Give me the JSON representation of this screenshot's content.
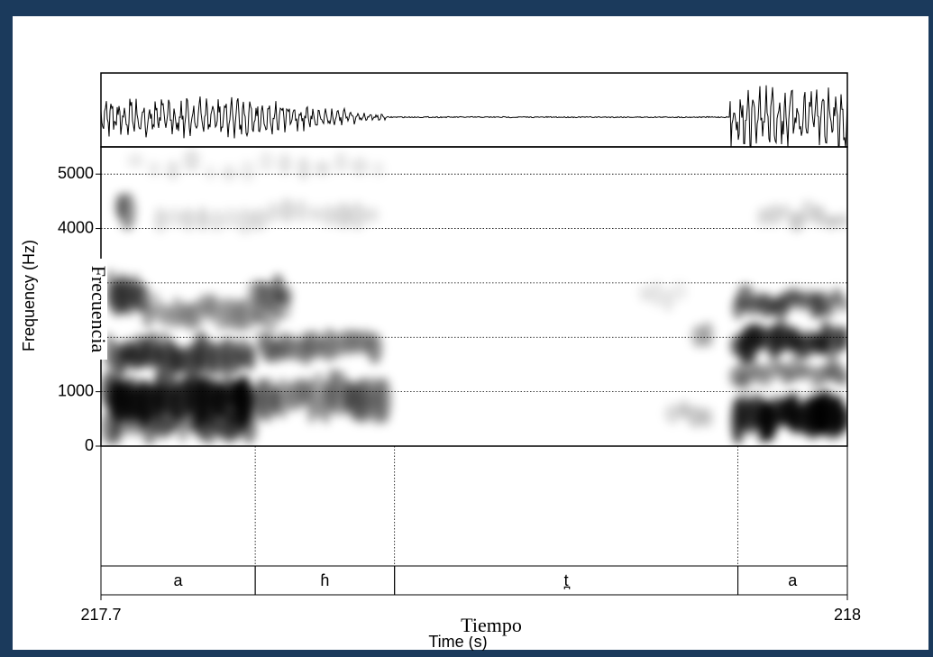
{
  "chart_data": {
    "type": "spectrogram",
    "xlabel": "Time (s)",
    "ylabel": "Frequency (Hz)",
    "overlay_labels": {
      "x": "Tiempo",
      "y": "Frecuencia"
    },
    "xlim": [
      217.7,
      218
    ],
    "xticks": [
      217.7,
      218
    ],
    "ylim": [
      0,
      5500
    ],
    "yticks": [
      0,
      1000,
      4000,
      5000
    ],
    "grid_lines": [
      1000,
      2000,
      3000,
      4000,
      5000
    ],
    "intervals": [
      {
        "label": "a",
        "start": 217.7,
        "end": 217.762
      },
      {
        "label": "ɦ",
        "start": 217.762,
        "end": 217.818
      },
      {
        "label": "t̪",
        "start": 217.818,
        "end": 217.956
      },
      {
        "label": "a",
        "start": 217.956,
        "end": 218
      }
    ]
  }
}
